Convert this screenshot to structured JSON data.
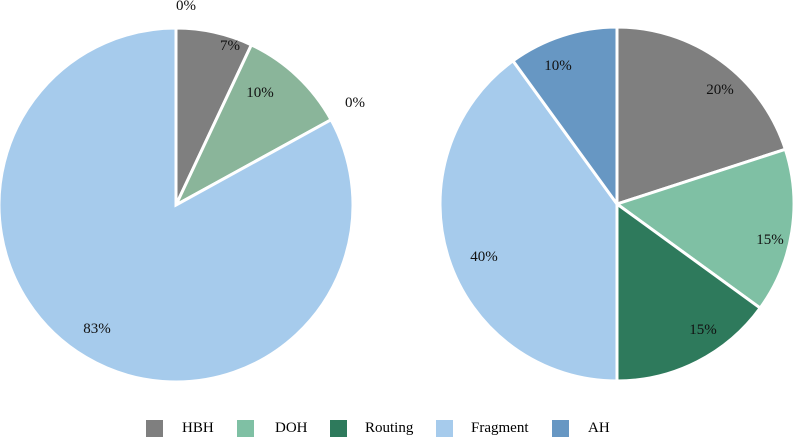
{
  "chart_data": [
    {
      "type": "pie",
      "title": "",
      "categories": [
        "HBH",
        "DOH",
        "Routing",
        "Fragment",
        "AH"
      ],
      "values": [
        7,
        10,
        0,
        83,
        0
      ],
      "labels": [
        "7%",
        "10%",
        "0%",
        "83%",
        "0%"
      ],
      "colors": [
        "#7f7f7f",
        "#8ab59a",
        "#2e7a5c",
        "#a6cbec",
        "#6797c3"
      ],
      "start_angle_deg": 0,
      "direction": "clockwise"
    },
    {
      "type": "pie",
      "title": "",
      "categories": [
        "HBH",
        "DOH",
        "Routing",
        "Fragment",
        "AH"
      ],
      "values": [
        20,
        15,
        15,
        40,
        10
      ],
      "labels": [
        "20%",
        "15%",
        "15%",
        "40%",
        "10%"
      ],
      "colors": [
        "#7f7f7f",
        "#7fc0a4",
        "#2e7a5c",
        "#a6cbec",
        "#6797c3"
      ],
      "start_angle_deg": 0,
      "direction": "clockwise"
    }
  ],
  "legend": {
    "position": "bottom",
    "items": [
      {
        "label": "HBH",
        "color": "#7f7f7f"
      },
      {
        "label": "DOH",
        "color": "#7fc0a4"
      },
      {
        "label": "Routing",
        "color": "#2e7a5c"
      },
      {
        "label": "Fragment",
        "color": "#a6cbec"
      },
      {
        "label": "AH",
        "color": "#6797c3"
      }
    ]
  }
}
